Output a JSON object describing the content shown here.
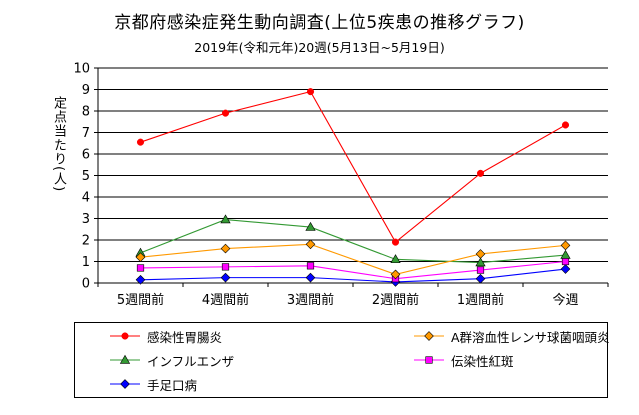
{
  "chart_data": {
    "type": "line",
    "title": "京都府感染症発生動向調査(上位5疾患の推移グラフ)",
    "subtitle": "2019年(令和元年)20週(5月13日~5月19日)",
    "ylabel": "定点当たり(人)",
    "xlabel": "",
    "categories": [
      "5週間前",
      "4週間前",
      "3週間前",
      "2週間前",
      "1週間前",
      "今週"
    ],
    "ylim": [
      0,
      10
    ],
    "yticks": [
      "0",
      "1",
      "2",
      "3",
      "4",
      "5",
      "6",
      "7",
      "8",
      "9",
      "10"
    ],
    "grid": "horizontal",
    "legend_position": "bottom",
    "series": [
      {
        "name": "感染性胃腸炎",
        "color": "#ff0000",
        "marker": "circle",
        "values": [
          6.55,
          7.9,
          8.9,
          1.9,
          5.1,
          7.35
        ]
      },
      {
        "name": "A群溶血性レンサ球菌咽頭炎",
        "color": "#ff9900",
        "marker": "diamond",
        "values": [
          1.2,
          1.6,
          1.8,
          0.4,
          1.35,
          1.75
        ]
      },
      {
        "name": "インフルエンザ",
        "color": "#339933",
        "marker": "triangle",
        "values": [
          1.4,
          2.95,
          2.6,
          1.1,
          0.95,
          1.3
        ]
      },
      {
        "name": "伝染性紅斑",
        "color": "#ff00ff",
        "marker": "square",
        "values": [
          0.7,
          0.75,
          0.8,
          0.2,
          0.6,
          1.0
        ]
      },
      {
        "name": "手足口病",
        "color": "#0000ff",
        "marker": "diamond",
        "values": [
          0.15,
          0.25,
          0.25,
          0.05,
          0.2,
          0.65
        ]
      }
    ]
  }
}
